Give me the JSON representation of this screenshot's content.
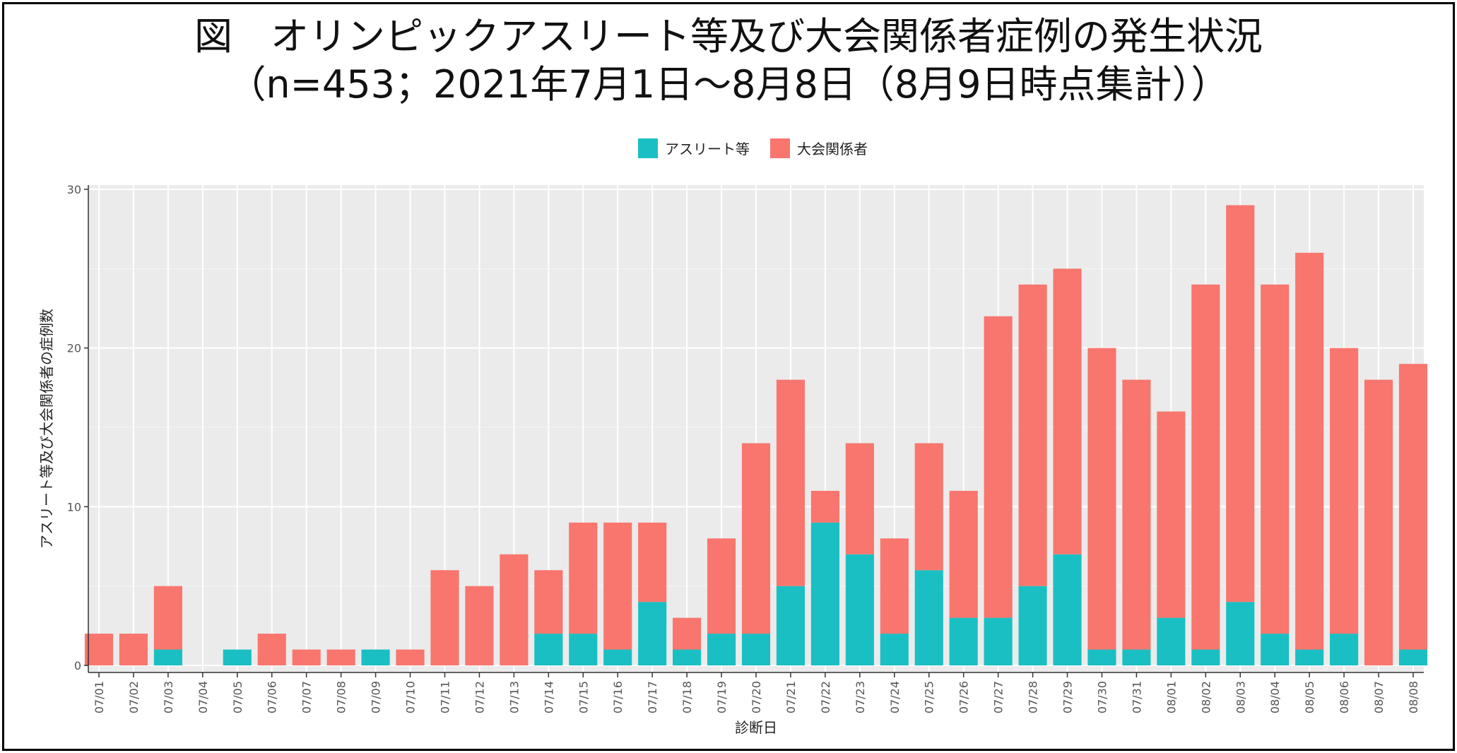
{
  "page": {
    "title_line1": "図　オリンピックアスリート等及び大会関係者症例の発生状況",
    "title_line2": "（n=453；2021年7月1日～8月8日（8月9日時点集計））"
  },
  "chart_data": {
    "type": "bar",
    "stacked": true,
    "xlabel": "診断日",
    "ylabel": "アスリート等及び大会関係者の症例数",
    "ylim": [
      0,
      30
    ],
    "yticks": [
      0,
      10,
      20,
      30
    ],
    "grid": true,
    "legend": {
      "position": "top-center"
    },
    "categories": [
      "07/01",
      "07/02",
      "07/03",
      "07/04",
      "07/05",
      "07/06",
      "07/07",
      "07/08",
      "07/09",
      "07/10",
      "07/11",
      "07/12",
      "07/13",
      "07/14",
      "07/15",
      "07/16",
      "07/17",
      "07/18",
      "07/19",
      "07/20",
      "07/21",
      "07/22",
      "07/23",
      "07/24",
      "07/25",
      "07/26",
      "07/27",
      "07/28",
      "07/29",
      "07/30",
      "07/31",
      "08/01",
      "08/02",
      "08/03",
      "08/04",
      "08/05",
      "08/06",
      "08/07",
      "08/08"
    ],
    "series": [
      {
        "name": "アスリート等",
        "color": "#1ABFC3",
        "values": [
          0,
          0,
          1,
          0,
          1,
          0,
          0,
          0,
          1,
          0,
          0,
          0,
          0,
          2,
          2,
          1,
          4,
          1,
          2,
          2,
          5,
          9,
          7,
          2,
          6,
          3,
          3,
          5,
          7,
          1,
          1,
          3,
          1,
          4,
          2,
          1,
          2,
          0,
          1
        ]
      },
      {
        "name": "大会関係者",
        "color": "#F8766D",
        "values": [
          2,
          2,
          4,
          0,
          0,
          2,
          1,
          1,
          0,
          1,
          6,
          5,
          7,
          4,
          7,
          8,
          5,
          2,
          6,
          12,
          13,
          2,
          7,
          6,
          8,
          8,
          19,
          19,
          18,
          19,
          17,
          13,
          23,
          25,
          22,
          25,
          18,
          18,
          18
        ]
      }
    ]
  }
}
